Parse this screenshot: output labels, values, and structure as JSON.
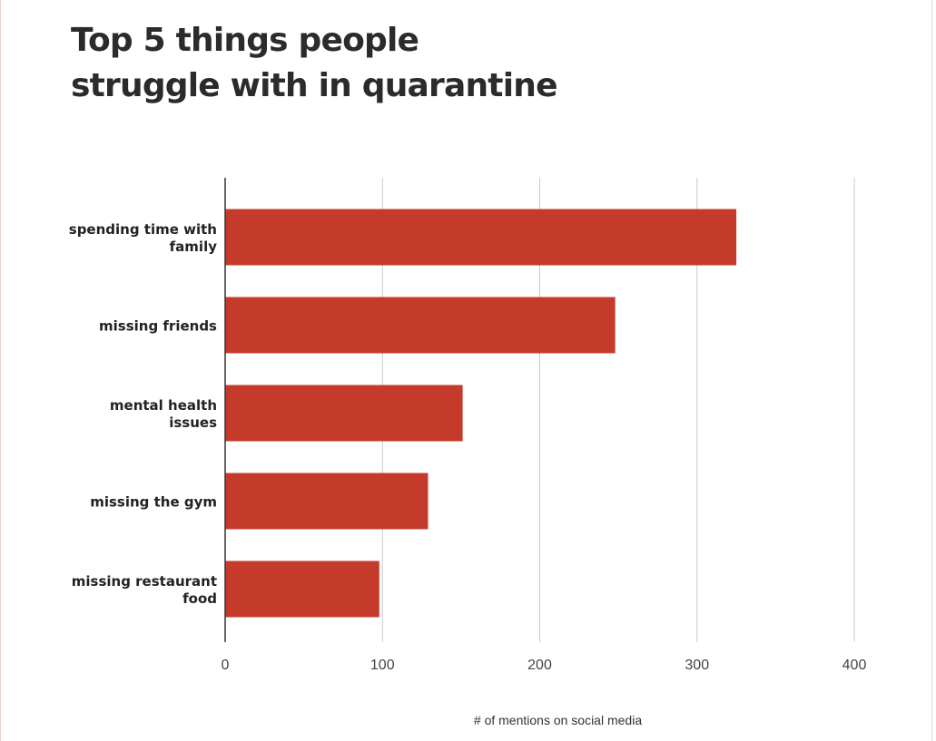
{
  "chart_data": {
    "type": "bar",
    "orientation": "horizontal",
    "title_lines": [
      "Top 5 things people",
      "struggle with in quarantine"
    ],
    "categories": [
      "spending time with family",
      "missing friends",
      "mental health issues",
      "missing the gym",
      "missing restaurant food"
    ],
    "category_label_lines": [
      [
        "spending time with",
        "family"
      ],
      [
        "missing friends"
      ],
      [
        "mental health",
        "issues"
      ],
      [
        "missing the gym"
      ],
      [
        "missing restaurant",
        "food"
      ]
    ],
    "values": [
      325,
      248,
      151,
      129,
      98
    ],
    "xlabel": "# of mentions on social media",
    "ylabel": "",
    "xlim": [
      0,
      400
    ],
    "xticks": [
      0,
      100,
      200,
      300,
      400
    ],
    "grid": true,
    "bar_color": "#c43b2c",
    "grid_color": "#cccccc",
    "axis_color": "#333333"
  }
}
